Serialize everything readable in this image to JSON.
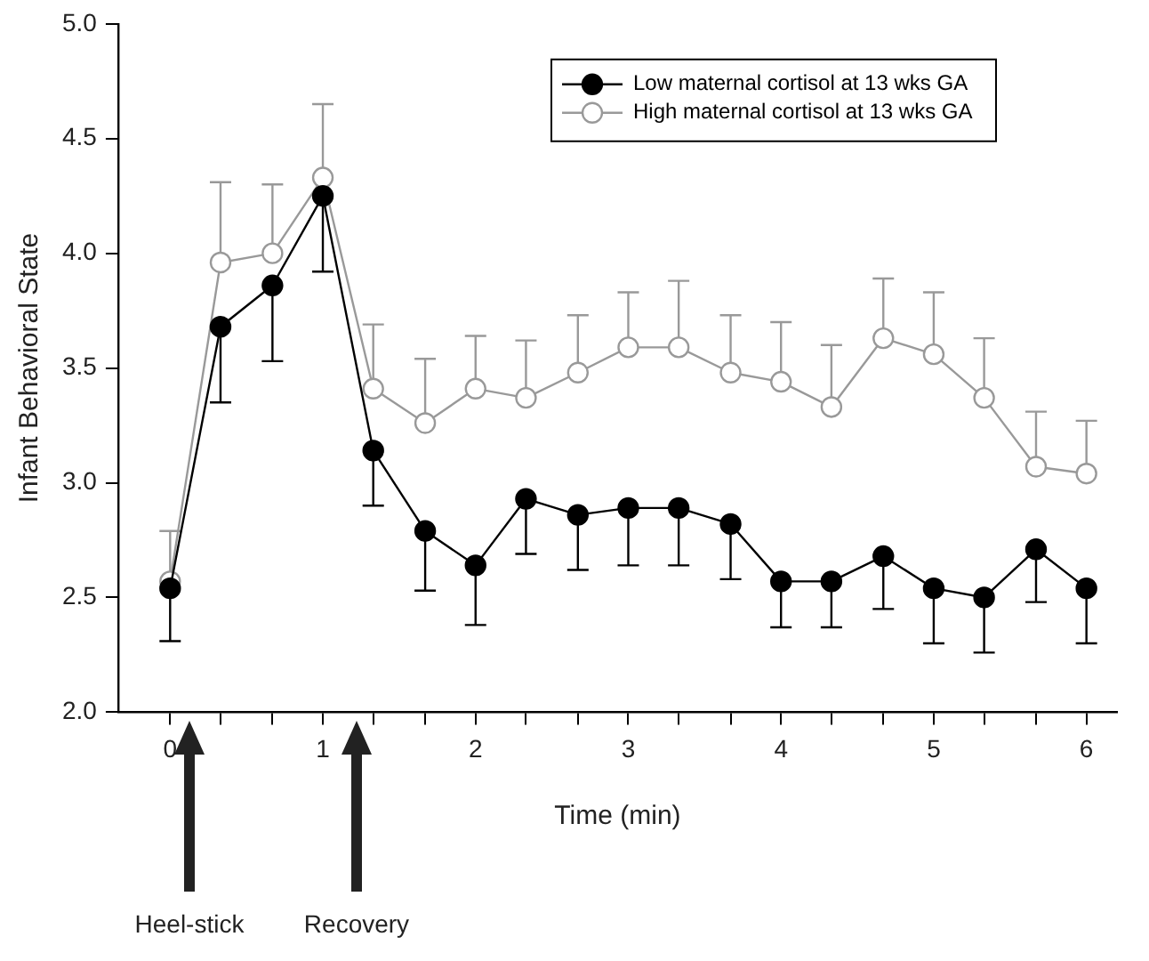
{
  "chart_data": {
    "type": "line",
    "xlabel": "Time (min)",
    "ylabel": "Infant Behavioral State",
    "x": [
      0,
      0.33,
      0.67,
      1,
      1.33,
      1.67,
      2,
      2.33,
      2.67,
      3,
      3.33,
      3.67,
      4,
      4.33,
      4.67,
      5,
      5.33,
      5.67,
      6
    ],
    "series": [
      {
        "name": "Low maternal cortisol at 13 wks GA",
        "color": "#000000",
        "values": [
          2.54,
          3.68,
          3.86,
          4.25,
          3.14,
          2.79,
          2.64,
          2.93,
          2.86,
          2.89,
          2.89,
          2.82,
          2.57,
          2.57,
          2.68,
          2.54,
          2.5,
          2.71,
          2.54
        ],
        "errors": [
          [
            2.31,
            2.54
          ],
          [
            3.35,
            3.68
          ],
          [
            3.53,
            3.86
          ],
          [
            3.92,
            4.25
          ],
          [
            2.9,
            3.14
          ],
          [
            2.53,
            2.79
          ],
          [
            2.38,
            2.64
          ],
          [
            2.69,
            2.93
          ],
          [
            2.62,
            2.86
          ],
          [
            2.64,
            2.89
          ],
          [
            2.64,
            2.89
          ],
          [
            2.58,
            2.82
          ],
          [
            2.37,
            2.57
          ],
          [
            2.37,
            2.57
          ],
          [
            2.45,
            2.68
          ],
          [
            2.3,
            2.54
          ],
          [
            2.26,
            2.5
          ],
          [
            2.48,
            2.71
          ],
          [
            2.3,
            2.54
          ]
        ]
      },
      {
        "name": "High maternal cortisol at 13 wks GA",
        "color": "#999999",
        "values": [
          2.57,
          3.96,
          4.0,
          4.33,
          3.41,
          3.26,
          3.41,
          3.37,
          3.48,
          3.59,
          3.59,
          3.48,
          3.44,
          3.33,
          3.63,
          3.56,
          3.37,
          3.07,
          3.04
        ],
        "errors": [
          [
            2.57,
            2.79
          ],
          [
            3.96,
            4.31
          ],
          [
            4.0,
            4.3
          ],
          [
            4.33,
            4.65
          ],
          [
            3.41,
            3.69
          ],
          [
            3.26,
            3.54
          ],
          [
            3.41,
            3.64
          ],
          [
            3.37,
            3.62
          ],
          [
            3.48,
            3.73
          ],
          [
            3.59,
            3.83
          ],
          [
            3.59,
            3.88
          ],
          [
            3.48,
            3.73
          ],
          [
            3.44,
            3.7
          ],
          [
            3.33,
            3.6
          ],
          [
            3.63,
            3.89
          ],
          [
            3.56,
            3.83
          ],
          [
            3.37,
            3.63
          ],
          [
            3.07,
            3.31
          ],
          [
            3.04,
            3.27
          ]
        ]
      }
    ],
    "xlim": [
      -0.34,
      6.2
    ],
    "xticks": [
      0,
      {
        "value": 0.33,
        "label": null
      },
      {
        "value": 0.67,
        "label": null
      },
      1,
      {
        "value": 1.33,
        "label": null
      },
      {
        "value": 1.67,
        "label": null
      },
      2,
      {
        "value": 2.33,
        "label": null
      },
      {
        "value": 2.67,
        "label": null
      },
      3,
      {
        "value": 3.33,
        "label": null
      },
      {
        "value": 3.67,
        "label": null
      },
      4,
      {
        "value": 4.33,
        "label": null
      },
      {
        "value": 4.67,
        "label": null
      },
      5,
      {
        "value": 5.33,
        "label": null
      },
      {
        "value": 5.67,
        "label": null
      },
      6
    ],
    "ylim": [
      2,
      5
    ],
    "yticks": [
      {
        "value": 2,
        "label": "2.0"
      },
      {
        "value": 2.5,
        "label": "2.5"
      },
      {
        "value": 3,
        "label": "3.0"
      },
      {
        "value": 3.5,
        "label": "3.5"
      },
      {
        "value": 4,
        "label": "4.0"
      },
      {
        "value": 4.5,
        "label": "4.5"
      },
      {
        "value": 5,
        "label": "5.0"
      }
    ],
    "grid": false,
    "legend": "top right",
    "marker": "circle",
    "line_style": "solid",
    "annotations": [
      "Heel-stick",
      "Recovery"
    ]
  }
}
